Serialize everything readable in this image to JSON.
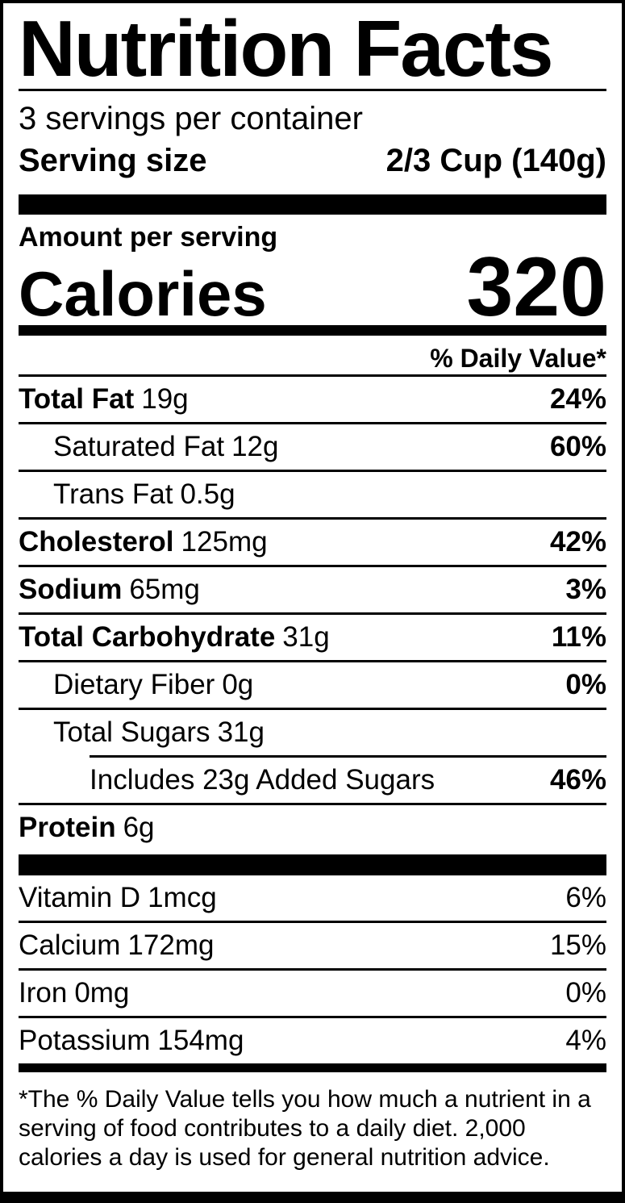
{
  "colors": {
    "foreground": "#000000",
    "background": "#ffffff"
  },
  "label": {
    "title": "Nutrition Facts",
    "servings_per_container": "3 servings per container",
    "serving_size": {
      "label": "Serving size",
      "value": "2/3 Cup (140g)"
    },
    "amount_per_serving": "Amount per serving",
    "calories": {
      "label": "Calories",
      "value": "320"
    },
    "daily_value_header": "% Daily Value*",
    "nutrients": [
      {
        "name": "Total Fat",
        "amount": "19g",
        "dv": "24%"
      },
      {
        "name": "Saturated Fat",
        "amount": "12g",
        "dv": "60%"
      },
      {
        "name": "Trans Fat",
        "amount": "0.5g",
        "dv": ""
      },
      {
        "name": "Cholesterol",
        "amount": "125mg",
        "dv": "42%"
      },
      {
        "name": "Sodium",
        "amount": "65mg",
        "dv": "3%"
      },
      {
        "name": "Total Carbohydrate",
        "amount": "31g",
        "dv": "11%"
      },
      {
        "name": "Dietary Fiber",
        "amount": "0g",
        "dv": "0%"
      },
      {
        "name": "Total Sugars",
        "amount": "31g",
        "dv": ""
      },
      {
        "name": "Includes 23g Added Sugars",
        "amount": "",
        "dv": "46%"
      },
      {
        "name": "Protein",
        "amount": "6g",
        "dv": ""
      }
    ],
    "micronutrients": [
      {
        "name": "Vitamin D",
        "amount": "1mcg",
        "dv": "6%"
      },
      {
        "name": "Calcium",
        "amount": "172mg",
        "dv": "15%"
      },
      {
        "name": "Iron",
        "amount": "0mg",
        "dv": "0%"
      },
      {
        "name": "Potassium",
        "amount": "154mg",
        "dv": "4%"
      }
    ],
    "footnote": "*The % Daily Value tells you how much a nutrient in a serving of food contributes to a daily diet. 2,000 calories a day is used for general nutrition advice."
  }
}
